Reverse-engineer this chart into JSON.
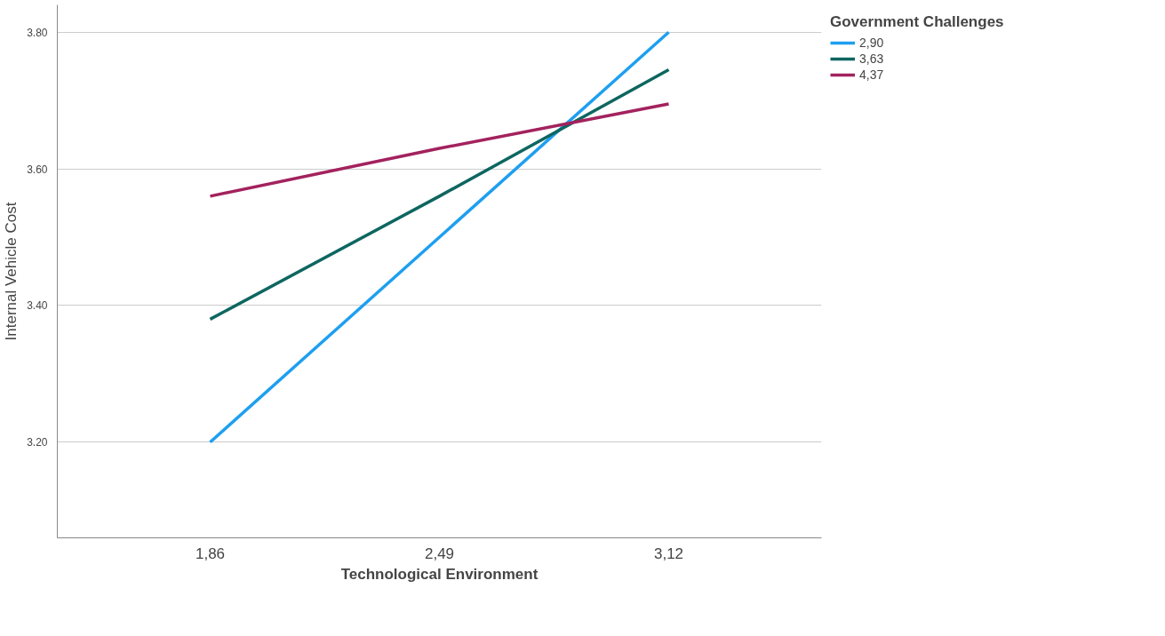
{
  "chart_data": {
    "type": "line",
    "xlabel": "Technological Environment",
    "ylabel": "Internal Vehicle Cost",
    "legend_title": "Government Challenges",
    "x": [
      1.86,
      2.49,
      3.12
    ],
    "series": [
      {
        "name": "2,90",
        "color": "#1e9ff0",
        "values": [
          3.2,
          3.5,
          3.8
        ]
      },
      {
        "name": "3,63",
        "color": "#0e6660",
        "values": [
          3.38,
          3.56,
          3.745
        ]
      },
      {
        "name": "4,37",
        "color": "#a3225e",
        "values": [
          3.56,
          3.63,
          3.695
        ]
      }
    ],
    "xlim": [
      1.44,
      3.54
    ],
    "ylim": [
      3.06,
      3.84
    ],
    "xticks": [
      {
        "value": 1.86,
        "label": "1,86"
      },
      {
        "value": 2.49,
        "label": "2,49"
      },
      {
        "value": 3.12,
        "label": "3,12"
      }
    ],
    "yticks": [
      {
        "value": 3.2,
        "label": "3.20"
      },
      {
        "value": 3.4,
        "label": "3.40"
      },
      {
        "value": 3.6,
        "label": "3.60"
      },
      {
        "value": 3.8,
        "label": "3.80"
      }
    ],
    "grid": "y",
    "legend": "top right",
    "marker": "none",
    "line_style": "solid"
  }
}
